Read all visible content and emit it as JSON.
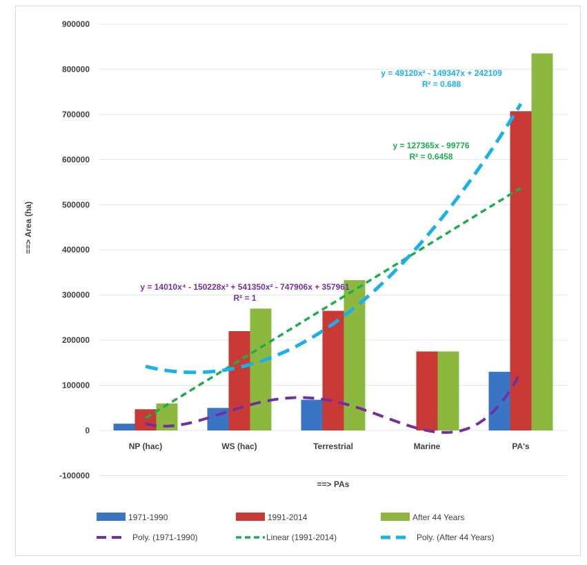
{
  "chart_data": {
    "type": "bar",
    "xlabel": "==> PAs",
    "ylabel": "==> Area (ha)",
    "ylim": [
      -100000,
      900000
    ],
    "yticks": [
      -100000,
      0,
      100000,
      200000,
      300000,
      400000,
      500000,
      600000,
      700000,
      800000,
      900000
    ],
    "ytick_labels": [
      "-100000",
      "0",
      "100000",
      "200000",
      "300000",
      "400000",
      "500000",
      "600000",
      "700000",
      "800000",
      "900000"
    ],
    "grid": true,
    "legend_placement": "bottom",
    "categories": [
      "NP (hac)",
      "WS (hac)",
      "Terrestrial",
      "Marine",
      "PA's"
    ],
    "series": [
      {
        "name": "1971-1990",
        "color": "#3a74c4",
        "values": [
          15000,
          50000,
          68000,
          0,
          130000
        ]
      },
      {
        "name": "1991-2014",
        "color": "#c93a36",
        "values": [
          47000,
          220000,
          265000,
          175000,
          707000
        ]
      },
      {
        "name": "After 44 Years",
        "color": "#8db840",
        "values": [
          60000,
          270000,
          333000,
          175000,
          835000
        ]
      }
    ],
    "trendlines": [
      {
        "name": "Poly. (1971-1990)",
        "color": "#7030a0",
        "type": "polynomial",
        "coefficients": [
          357961,
          -747906,
          541350,
          -150228,
          14010
        ],
        "equation": "y = 14010x⁴ - 150228x³ + 541350x² - 747906x + 357961",
        "r2": "R² = 1"
      },
      {
        "name": "Linear (1991-2014)",
        "color": "#1aaf4b",
        "type": "linear",
        "coefficients": [
          -99776,
          127365
        ],
        "equation": "y = 127365x - 99776",
        "r2": "R² = 0.6458"
      },
      {
        "name": "Poly. (After 44 Years)",
        "color": "#1ab0ea",
        "type": "polynomial",
        "coefficients": [
          242109,
          -149347,
          49120
        ],
        "equation": "y = 49120x² - 149347x + 242109",
        "r2": "R² = 0.688"
      }
    ]
  }
}
